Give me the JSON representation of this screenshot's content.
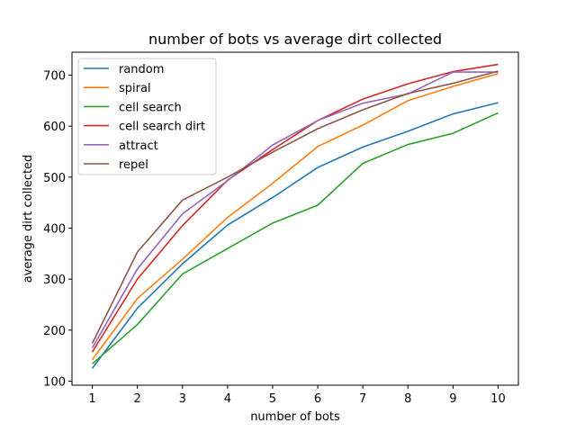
{
  "chart_data": {
    "type": "line",
    "title": "number of bots vs average dirt collected",
    "xlabel": "number of bots",
    "ylabel": "average dirt collected",
    "x": [
      1,
      2,
      3,
      4,
      5,
      6,
      7,
      8,
      9,
      10
    ],
    "xlim": [
      0.55,
      10.45
    ],
    "ylim": [
      92,
      745
    ],
    "xticks": [
      1,
      2,
      3,
      4,
      5,
      6,
      7,
      8,
      9,
      10
    ],
    "yticks": [
      100,
      200,
      300,
      400,
      500,
      600,
      700
    ],
    "grid": false,
    "legend_position": "upper-left",
    "series": [
      {
        "name": "random",
        "color": "#1f77b4",
        "values": [
          125,
          243,
          330,
          406,
          460,
          519,
          559,
          590,
          624,
          646
        ]
      },
      {
        "name": "spiral",
        "color": "#ff7f0e",
        "values": [
          142,
          262,
          339,
          421,
          488,
          560,
          602,
          650,
          678,
          703
        ]
      },
      {
        "name": "cell search",
        "color": "#2ca02c",
        "values": [
          134,
          211,
          310,
          360,
          410,
          445,
          527,
          564,
          586,
          626
        ]
      },
      {
        "name": "cell search dirt",
        "color": "#d62728",
        "values": [
          157,
          300,
          405,
          494,
          554,
          611,
          653,
          683,
          707,
          721
        ]
      },
      {
        "name": "attract",
        "color": "#9467bd",
        "values": [
          165,
          320,
          428,
          493,
          563,
          611,
          645,
          663,
          706,
          706
        ]
      },
      {
        "name": "repel",
        "color": "#8c564b",
        "values": [
          174,
          353,
          455,
          500,
          549,
          595,
          632,
          664,
          684,
          708
        ]
      }
    ]
  }
}
